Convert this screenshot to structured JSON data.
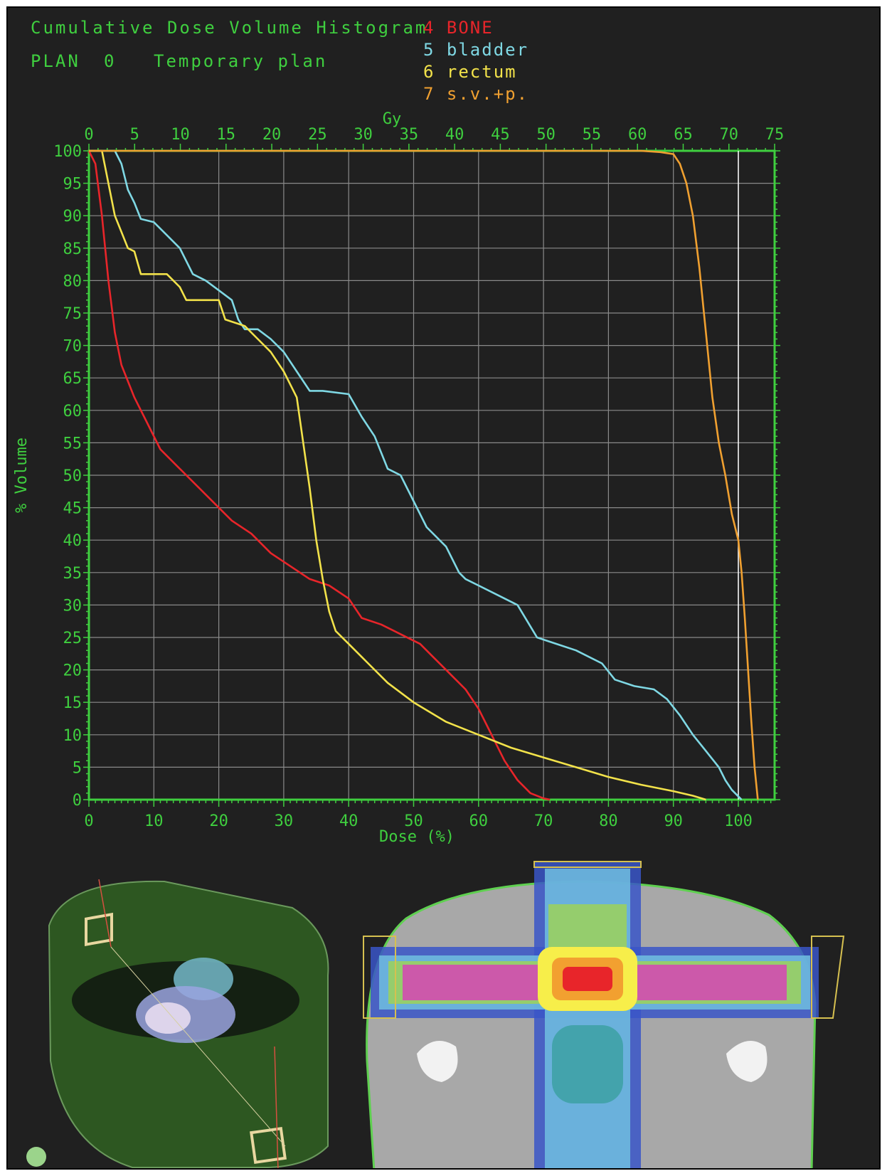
{
  "header": {
    "title": "Cumulative Dose Volume Histogram",
    "plan_label": "PLAN",
    "plan_number": "0",
    "plan_name": "Temporary plan"
  },
  "legend": [
    {
      "num": "4",
      "name": "BONE",
      "color": "#e8252a"
    },
    {
      "num": "5",
      "name": "bladder",
      "color": "#7fd8e4"
    },
    {
      "num": "6",
      "name": "rectum",
      "color": "#f2e24a"
    },
    {
      "num": "7",
      "name": "s.v.+p.",
      "color": "#f0a030"
    }
  ],
  "colors": {
    "axis": "#3fcf3f",
    "grid": "#8a8a8a",
    "background": "#202020",
    "marker": "#ffffff"
  },
  "chart_data": {
    "type": "line",
    "title": "Cumulative Dose Volume Histogram",
    "xlabel": "Dose (%)",
    "x2label": "Gy",
    "ylabel": "% Volume",
    "xlim": [
      0,
      105
    ],
    "x2lim": [
      0,
      75
    ],
    "ylim": [
      0,
      100
    ],
    "xticks": [
      "0",
      "10",
      "20",
      "30",
      "40",
      "50",
      "60",
      "70",
      "80",
      "90",
      "100"
    ],
    "x2ticks": [
      "0",
      "5",
      "10",
      "15",
      "20",
      "25",
      "30",
      "35",
      "40",
      "45",
      "50",
      "55",
      "60",
      "65",
      "70",
      "75"
    ],
    "yticks": [
      "0",
      "5",
      "10",
      "15",
      "20",
      "25",
      "30",
      "35",
      "40",
      "45",
      "50",
      "55",
      "60",
      "65",
      "70",
      "75",
      "80",
      "85",
      "90",
      "95",
      "100"
    ],
    "grid": true,
    "reference_line_x": 100,
    "series": [
      {
        "name": "BONE",
        "color": "#e8252a",
        "points": [
          [
            0,
            100
          ],
          [
            1,
            98
          ],
          [
            2,
            90
          ],
          [
            3,
            80
          ],
          [
            4,
            72
          ],
          [
            5,
            67
          ],
          [
            7,
            62
          ],
          [
            9,
            58
          ],
          [
            11,
            54
          ],
          [
            14,
            51
          ],
          [
            17,
            48
          ],
          [
            20,
            45
          ],
          [
            22,
            43
          ],
          [
            25,
            41
          ],
          [
            28,
            38
          ],
          [
            31,
            36
          ],
          [
            34,
            34
          ],
          [
            37,
            33
          ],
          [
            40,
            31
          ],
          [
            42,
            28
          ],
          [
            45,
            27
          ],
          [
            48,
            25.5
          ],
          [
            51,
            24
          ],
          [
            53,
            22
          ],
          [
            55,
            20
          ],
          [
            58,
            17
          ],
          [
            60,
            14
          ],
          [
            62,
            10
          ],
          [
            64,
            6
          ],
          [
            66,
            3
          ],
          [
            68,
            1
          ],
          [
            70,
            0.2
          ],
          [
            71,
            0
          ]
        ]
      },
      {
        "name": "bladder",
        "color": "#7fd8e4",
        "points": [
          [
            0,
            100
          ],
          [
            4,
            100
          ],
          [
            5,
            98
          ],
          [
            6,
            94
          ],
          [
            7,
            92
          ],
          [
            8,
            89.5
          ],
          [
            10,
            89
          ],
          [
            12,
            87
          ],
          [
            14,
            85
          ],
          [
            16,
            81
          ],
          [
            18,
            80
          ],
          [
            20,
            78.5
          ],
          [
            22,
            77
          ],
          [
            23,
            74
          ],
          [
            24,
            72.5
          ],
          [
            26,
            72.5
          ],
          [
            28,
            71
          ],
          [
            30,
            69
          ],
          [
            32,
            66
          ],
          [
            34,
            63
          ],
          [
            36,
            63
          ],
          [
            40,
            62.5
          ],
          [
            42,
            59
          ],
          [
            44,
            56
          ],
          [
            46,
            51
          ],
          [
            48,
            50
          ],
          [
            50,
            46
          ],
          [
            52,
            42
          ],
          [
            55,
            39
          ],
          [
            57,
            35
          ],
          [
            58,
            34
          ],
          [
            60,
            33
          ],
          [
            63,
            31.5
          ],
          [
            66,
            30
          ],
          [
            69,
            25
          ],
          [
            72,
            24
          ],
          [
            75,
            23
          ],
          [
            79,
            21
          ],
          [
            81,
            18.5
          ],
          [
            84,
            17.5
          ],
          [
            87,
            17
          ],
          [
            89,
            15.5
          ],
          [
            91,
            13
          ],
          [
            93,
            10
          ],
          [
            95,
            7.5
          ],
          [
            97,
            5
          ],
          [
            98,
            3
          ],
          [
            99,
            1.5
          ],
          [
            100,
            0.5
          ],
          [
            100.5,
            0
          ]
        ]
      },
      {
        "name": "rectum",
        "color": "#f2e24a",
        "points": [
          [
            0,
            100
          ],
          [
            2,
            100
          ],
          [
            3,
            95
          ],
          [
            4,
            90
          ],
          [
            5,
            87.5
          ],
          [
            6,
            85
          ],
          [
            7,
            84.5
          ],
          [
            8,
            81
          ],
          [
            12,
            81
          ],
          [
            14,
            79
          ],
          [
            15,
            77
          ],
          [
            20,
            77
          ],
          [
            21,
            74
          ],
          [
            24,
            73
          ],
          [
            26,
            71
          ],
          [
            28,
            69
          ],
          [
            30,
            66
          ],
          [
            32,
            62
          ],
          [
            33,
            55
          ],
          [
            34,
            48
          ],
          [
            35,
            40
          ],
          [
            36,
            34
          ],
          [
            37,
            29
          ],
          [
            38,
            26
          ],
          [
            40,
            24
          ],
          [
            43,
            21
          ],
          [
            46,
            18
          ],
          [
            50,
            15
          ],
          [
            55,
            12
          ],
          [
            60,
            10
          ],
          [
            65,
            8
          ],
          [
            70,
            6.5
          ],
          [
            75,
            5
          ],
          [
            80,
            3.5
          ],
          [
            85,
            2.3
          ],
          [
            90,
            1.3
          ],
          [
            93,
            0.6
          ],
          [
            95,
            0
          ]
        ]
      },
      {
        "name": "s.v.+p.",
        "color": "#f0a030",
        "points": [
          [
            0,
            100
          ],
          [
            85,
            100
          ],
          [
            88,
            99.8
          ],
          [
            90,
            99.5
          ],
          [
            91,
            98
          ],
          [
            92,
            95
          ],
          [
            93,
            90
          ],
          [
            94,
            82
          ],
          [
            95,
            72
          ],
          [
            96,
            62
          ],
          [
            97,
            55
          ],
          [
            98,
            50
          ],
          [
            99,
            44
          ],
          [
            100,
            40
          ],
          [
            100.5,
            35
          ],
          [
            101,
            28
          ],
          [
            101.5,
            20
          ],
          [
            102,
            12
          ],
          [
            102.5,
            5
          ],
          [
            103,
            0
          ]
        ]
      }
    ]
  }
}
